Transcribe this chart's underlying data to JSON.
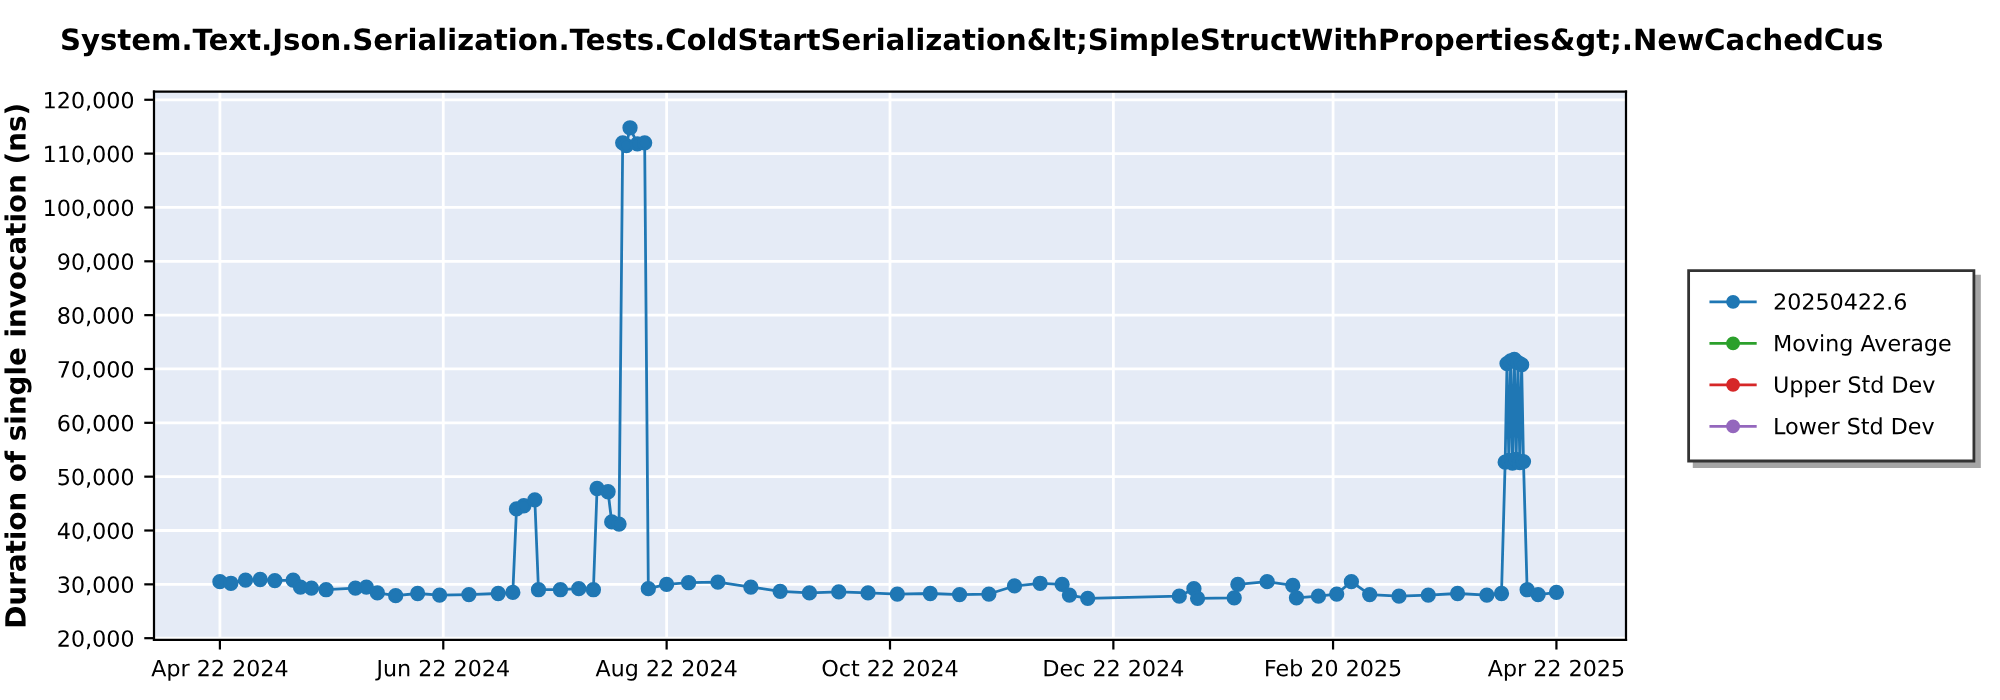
{
  "chart_data": {
    "type": "line",
    "title": "System.Text.Json.Serialization.Tests.ColdStartSerialization&lt;SimpleStructWithProperties&gt;.NewCachedCus",
    "ylabel": "Duration of single invocation (ns)",
    "x": [
      "2024-04-22",
      "2024-04-25",
      "2024-04-29",
      "2024-05-03",
      "2024-05-07",
      "2024-05-12",
      "2024-05-14",
      "2024-05-17",
      "2024-05-21",
      "2024-05-29",
      "2024-06-01",
      "2024-06-04",
      "2024-06-09",
      "2024-06-15",
      "2024-06-21",
      "2024-06-29",
      "2024-07-07",
      "2024-07-11",
      "2024-07-12",
      "2024-07-14",
      "2024-07-17",
      "2024-07-18",
      "2024-07-24",
      "2024-07-29",
      "2024-08-02",
      "2024-08-03",
      "2024-08-06",
      "2024-08-07",
      "2024-08-09",
      "2024-08-10",
      "2024-08-11",
      "2024-08-12",
      "2024-08-14",
      "2024-08-16",
      "2024-08-17",
      "2024-08-22",
      "2024-08-28",
      "2024-09-05",
      "2024-09-14",
      "2024-09-22",
      "2024-09-30",
      "2024-10-08",
      "2024-10-16",
      "2024-10-24",
      "2024-11-02",
      "2024-11-10",
      "2024-11-18",
      "2024-11-25",
      "2024-12-02",
      "2024-12-08",
      "2024-12-10",
      "2024-12-15",
      "2025-01-09",
      "2025-01-13",
      "2025-01-14",
      "2025-01-24",
      "2025-01-25",
      "2025-02-02",
      "2025-02-09",
      "2025-02-10",
      "2025-02-16",
      "2025-02-21",
      "2025-02-25",
      "2025-03-02",
      "2025-03-10",
      "2025-03-18",
      "2025-03-26",
      "2025-04-03",
      "2025-04-07",
      "2025-04-08",
      "2025-04-08T12:00",
      "2025-04-09",
      "2025-04-09T12:00",
      "2025-04-10",
      "2025-04-10T12:00",
      "2025-04-11",
      "2025-04-11T12:00",
      "2025-04-12",
      "2025-04-12T12:00",
      "2025-04-13",
      "2025-04-14",
      "2025-04-17",
      "2025-04-22"
    ],
    "series": [
      {
        "name": "20250422.6",
        "color": "#1f77b4",
        "values": [
          30500,
          30200,
          30800,
          30900,
          30700,
          30800,
          29500,
          29300,
          29000,
          29300,
          29500,
          28400,
          27900,
          28300,
          28000,
          28100,
          28300,
          28500,
          44000,
          44600,
          45700,
          29000,
          29000,
          29200,
          29000,
          47800,
          47200,
          41600,
          41200,
          112000,
          111500,
          114800,
          111800,
          112000,
          29200,
          30000,
          30300,
          30400,
          29500,
          28700,
          28400,
          28600,
          28400,
          28200,
          28300,
          28100,
          28200,
          29700,
          30200,
          30000,
          28000,
          27400,
          27800,
          29200,
          27400,
          27500,
          30000,
          30500,
          29800,
          27500,
          27800,
          28200,
          30500,
          28100,
          27800,
          28000,
          28300,
          28000,
          28300,
          52700,
          71000,
          53000,
          71500,
          52500,
          71800,
          53200,
          71200,
          52600,
          70800,
          52800,
          29000,
          28100,
          28500
        ]
      },
      {
        "name": "Moving Average",
        "color": "#2ca02c",
        "values": [
          null,
          null,
          null,
          null,
          null,
          null,
          null,
          null,
          null,
          null,
          null,
          null,
          null,
          null,
          null,
          null,
          null,
          null,
          null,
          null,
          null,
          null,
          null,
          null,
          null,
          null,
          null,
          null,
          null,
          null,
          null,
          null,
          null,
          null,
          null,
          null,
          null,
          null,
          null,
          null,
          null,
          null,
          null,
          null,
          null,
          null,
          null,
          null,
          null,
          null,
          null,
          null,
          null,
          null,
          null,
          null,
          null,
          null,
          null,
          null,
          null,
          null,
          null,
          null,
          null,
          null,
          null,
          null,
          null,
          null,
          null,
          null,
          null,
          null,
          null,
          null,
          null,
          null,
          null,
          null,
          null,
          null,
          null
        ]
      },
      {
        "name": "Upper Std Dev",
        "color": "#d62728",
        "values": [
          null,
          null,
          null,
          null,
          null,
          null,
          null,
          null,
          null,
          null,
          null,
          null,
          null,
          null,
          null,
          null,
          null,
          null,
          null,
          null,
          null,
          null,
          null,
          null,
          null,
          null,
          null,
          null,
          null,
          null,
          null,
          null,
          null,
          null,
          null,
          null,
          null,
          null,
          null,
          null,
          null,
          null,
          null,
          null,
          null,
          null,
          null,
          null,
          null,
          null,
          null,
          null,
          null,
          null,
          null,
          null,
          null,
          null,
          null,
          null,
          null,
          null,
          null,
          null,
          null,
          null,
          null,
          null,
          null,
          null,
          null,
          null,
          null,
          null,
          null,
          null,
          null,
          null,
          null,
          null,
          null,
          null,
          null
        ]
      },
      {
        "name": "Lower Std Dev",
        "color": "#9467bd",
        "values": [
          null,
          null,
          null,
          null,
          null,
          null,
          null,
          null,
          null,
          null,
          null,
          null,
          null,
          null,
          null,
          null,
          null,
          null,
          null,
          null,
          null,
          null,
          null,
          null,
          null,
          null,
          null,
          null,
          null,
          null,
          null,
          null,
          null,
          null,
          null,
          null,
          null,
          null,
          null,
          null,
          null,
          null,
          null,
          null,
          null,
          null,
          null,
          null,
          null,
          null,
          null,
          null,
          null,
          null,
          null,
          null,
          null,
          null,
          null,
          null,
          null,
          null,
          null,
          null,
          null,
          null,
          null,
          null,
          null,
          null,
          null,
          null,
          null,
          null,
          null,
          null,
          null,
          null,
          null,
          null,
          null,
          null,
          null
        ]
      }
    ],
    "xlim": [
      "2024-04-04",
      "2025-05-11"
    ],
    "xticks": [
      {
        "value": "2024-04-22",
        "label": "Apr 22 2024"
      },
      {
        "value": "2024-06-22",
        "label": "Jun 22 2024"
      },
      {
        "value": "2024-08-22",
        "label": "Aug 22 2024"
      },
      {
        "value": "2024-10-22",
        "label": "Oct 22 2024"
      },
      {
        "value": "2024-12-22",
        "label": "Dec 22 2024"
      },
      {
        "value": "2025-02-20",
        "label": "Feb 20 2025"
      },
      {
        "value": "2025-04-22",
        "label": "Apr 22 2025"
      }
    ],
    "ylim": [
      19700,
      121500
    ],
    "yticks": [
      {
        "value": 20000,
        "label": "20,000"
      },
      {
        "value": 30000,
        "label": "30,000"
      },
      {
        "value": 40000,
        "label": "40,000"
      },
      {
        "value": 50000,
        "label": "50,000"
      },
      {
        "value": 60000,
        "label": "60,000"
      },
      {
        "value": 70000,
        "label": "70,000"
      },
      {
        "value": 80000,
        "label": "80,000"
      },
      {
        "value": 90000,
        "label": "90,000"
      },
      {
        "value": 100000,
        "label": "100,000"
      },
      {
        "value": 110000,
        "label": "110,000"
      },
      {
        "value": 120000,
        "label": "120,000"
      }
    ],
    "grid": true,
    "legend": "right",
    "marker": "circle",
    "line_style": "solid"
  }
}
